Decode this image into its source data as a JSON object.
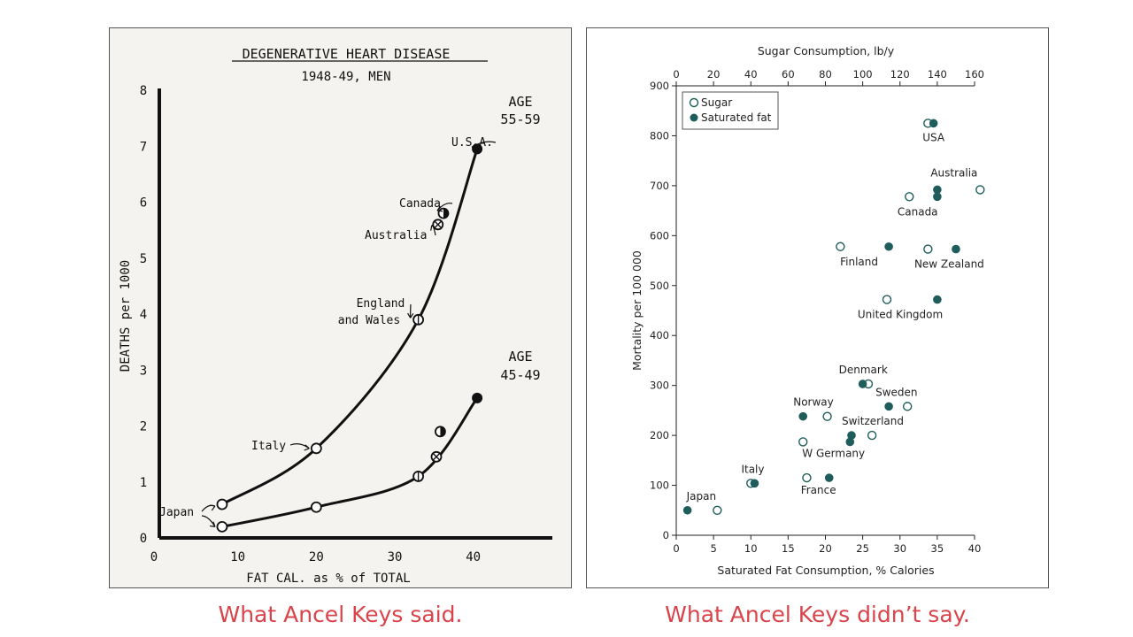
{
  "captions": {
    "left": "What Ancel Keys said.",
    "right": "What Ancel Keys didn’t say."
  },
  "colors": {
    "caption": "#d9434a",
    "marker": "#1f5c5c",
    "ink": "#111111"
  },
  "chart_data": [
    {
      "type": "line",
      "title": "DEGENERATIVE HEART DISEASE",
      "subtitle": "1948-49, MEN",
      "xlabel": "FAT CAL. as % of TOTAL",
      "ylabel": "DEATHS per 1000",
      "xlim": [
        0,
        45
      ],
      "ylim": [
        0,
        8
      ],
      "x_ticks": [
        "0",
        "10",
        "20",
        "30",
        "40"
      ],
      "y_ticks": [
        "0",
        "1",
        "2",
        "3",
        "4",
        "5",
        "6",
        "7",
        "8"
      ],
      "grid": false,
      "series": [
        {
          "name": "AGE 55-59",
          "label_lines": [
            "AGE",
            "55-59"
          ],
          "points": [
            {
              "label": "Japan",
              "x": 8,
              "y": 0.6
            },
            {
              "label": "Italy",
              "x": 20,
              "y": 1.6
            },
            {
              "label": "England and Wales",
              "label_lines": [
                "England",
                "and Wales"
              ],
              "x": 33,
              "y": 3.9
            },
            {
              "label": "Australia",
              "x": 35.5,
              "y": 5.6
            },
            {
              "label": "Canada",
              "x": 36.2,
              "y": 5.8
            },
            {
              "label": "U.S.A.",
              "x": 40.5,
              "y": 6.95
            }
          ]
        },
        {
          "name": "AGE 45-49",
          "label_lines": [
            "AGE",
            "45-49"
          ],
          "points": [
            {
              "label": "Japan",
              "x": 8,
              "y": 0.2
            },
            {
              "label": "",
              "x": 20,
              "y": 0.55
            },
            {
              "label": "",
              "x": 33,
              "y": 1.1
            },
            {
              "label": "",
              "x": 35.3,
              "y": 1.45
            },
            {
              "label": "",
              "x": 35.8,
              "y": 1.9
            },
            {
              "label": "",
              "x": 40.5,
              "y": 2.5
            }
          ]
        }
      ]
    },
    {
      "type": "scatter",
      "xlabel": "Saturated Fat Consumption, % Calories",
      "x2label": "Sugar Consumption, lb/y",
      "ylabel": "Mortality per 100 000",
      "xlim": [
        0,
        40
      ],
      "x2lim": [
        0,
        160
      ],
      "ylim": [
        0,
        900
      ],
      "x_ticks": [
        "0",
        "5",
        "10",
        "15",
        "20",
        "25",
        "30",
        "35",
        "40"
      ],
      "x2_ticks": [
        "0",
        "20",
        "40",
        "60",
        "80",
        "100",
        "120",
        "140",
        "160"
      ],
      "y_ticks": [
        "0",
        "100",
        "200",
        "300",
        "400",
        "500",
        "600",
        "700",
        "800",
        "900"
      ],
      "grid": false,
      "legend": {
        "position": "top-left",
        "items": [
          {
            "name": "Sugar",
            "marker": "open"
          },
          {
            "name": "Saturated fat",
            "marker": "filled"
          }
        ]
      },
      "countries": [
        {
          "label": "USA",
          "sat_fat": 34.5,
          "sugar": 135,
          "mortality": 825
        },
        {
          "label": "Australia",
          "sat_fat": 35,
          "sugar": 163,
          "mortality": 692
        },
        {
          "label": "Canada",
          "sat_fat": 35,
          "sugar": 125,
          "mortality": 678
        },
        {
          "label": "Finland",
          "sat_fat": 28.5,
          "sugar": 88,
          "mortality": 578
        },
        {
          "label": "New Zealand",
          "sat_fat": 37.5,
          "sugar": 135,
          "mortality": 573
        },
        {
          "label": "United Kingdom",
          "sat_fat": 35,
          "sugar": 113,
          "mortality": 472
        },
        {
          "label": "Denmark",
          "sat_fat": 25,
          "sugar": 103,
          "mortality": 303
        },
        {
          "label": "Sweden",
          "sat_fat": 28.5,
          "sugar": 124,
          "mortality": 258
        },
        {
          "label": "Norway",
          "sat_fat": 17,
          "sugar": 81,
          "mortality": 238
        },
        {
          "label": "Switzerland",
          "sat_fat": 23.5,
          "sugar": 105,
          "mortality": 200
        },
        {
          "label": "W Germany",
          "sat_fat": 23.3,
          "sugar": 68,
          "mortality": 187
        },
        {
          "label": "Italy",
          "sat_fat": 10.5,
          "sugar": 40,
          "mortality": 104
        },
        {
          "label": "France",
          "sat_fat": 20.5,
          "sugar": 70,
          "mortality": 115
        },
        {
          "label": "Japan",
          "sat_fat": 1.5,
          "sugar": 22,
          "mortality": 50
        }
      ]
    }
  ]
}
